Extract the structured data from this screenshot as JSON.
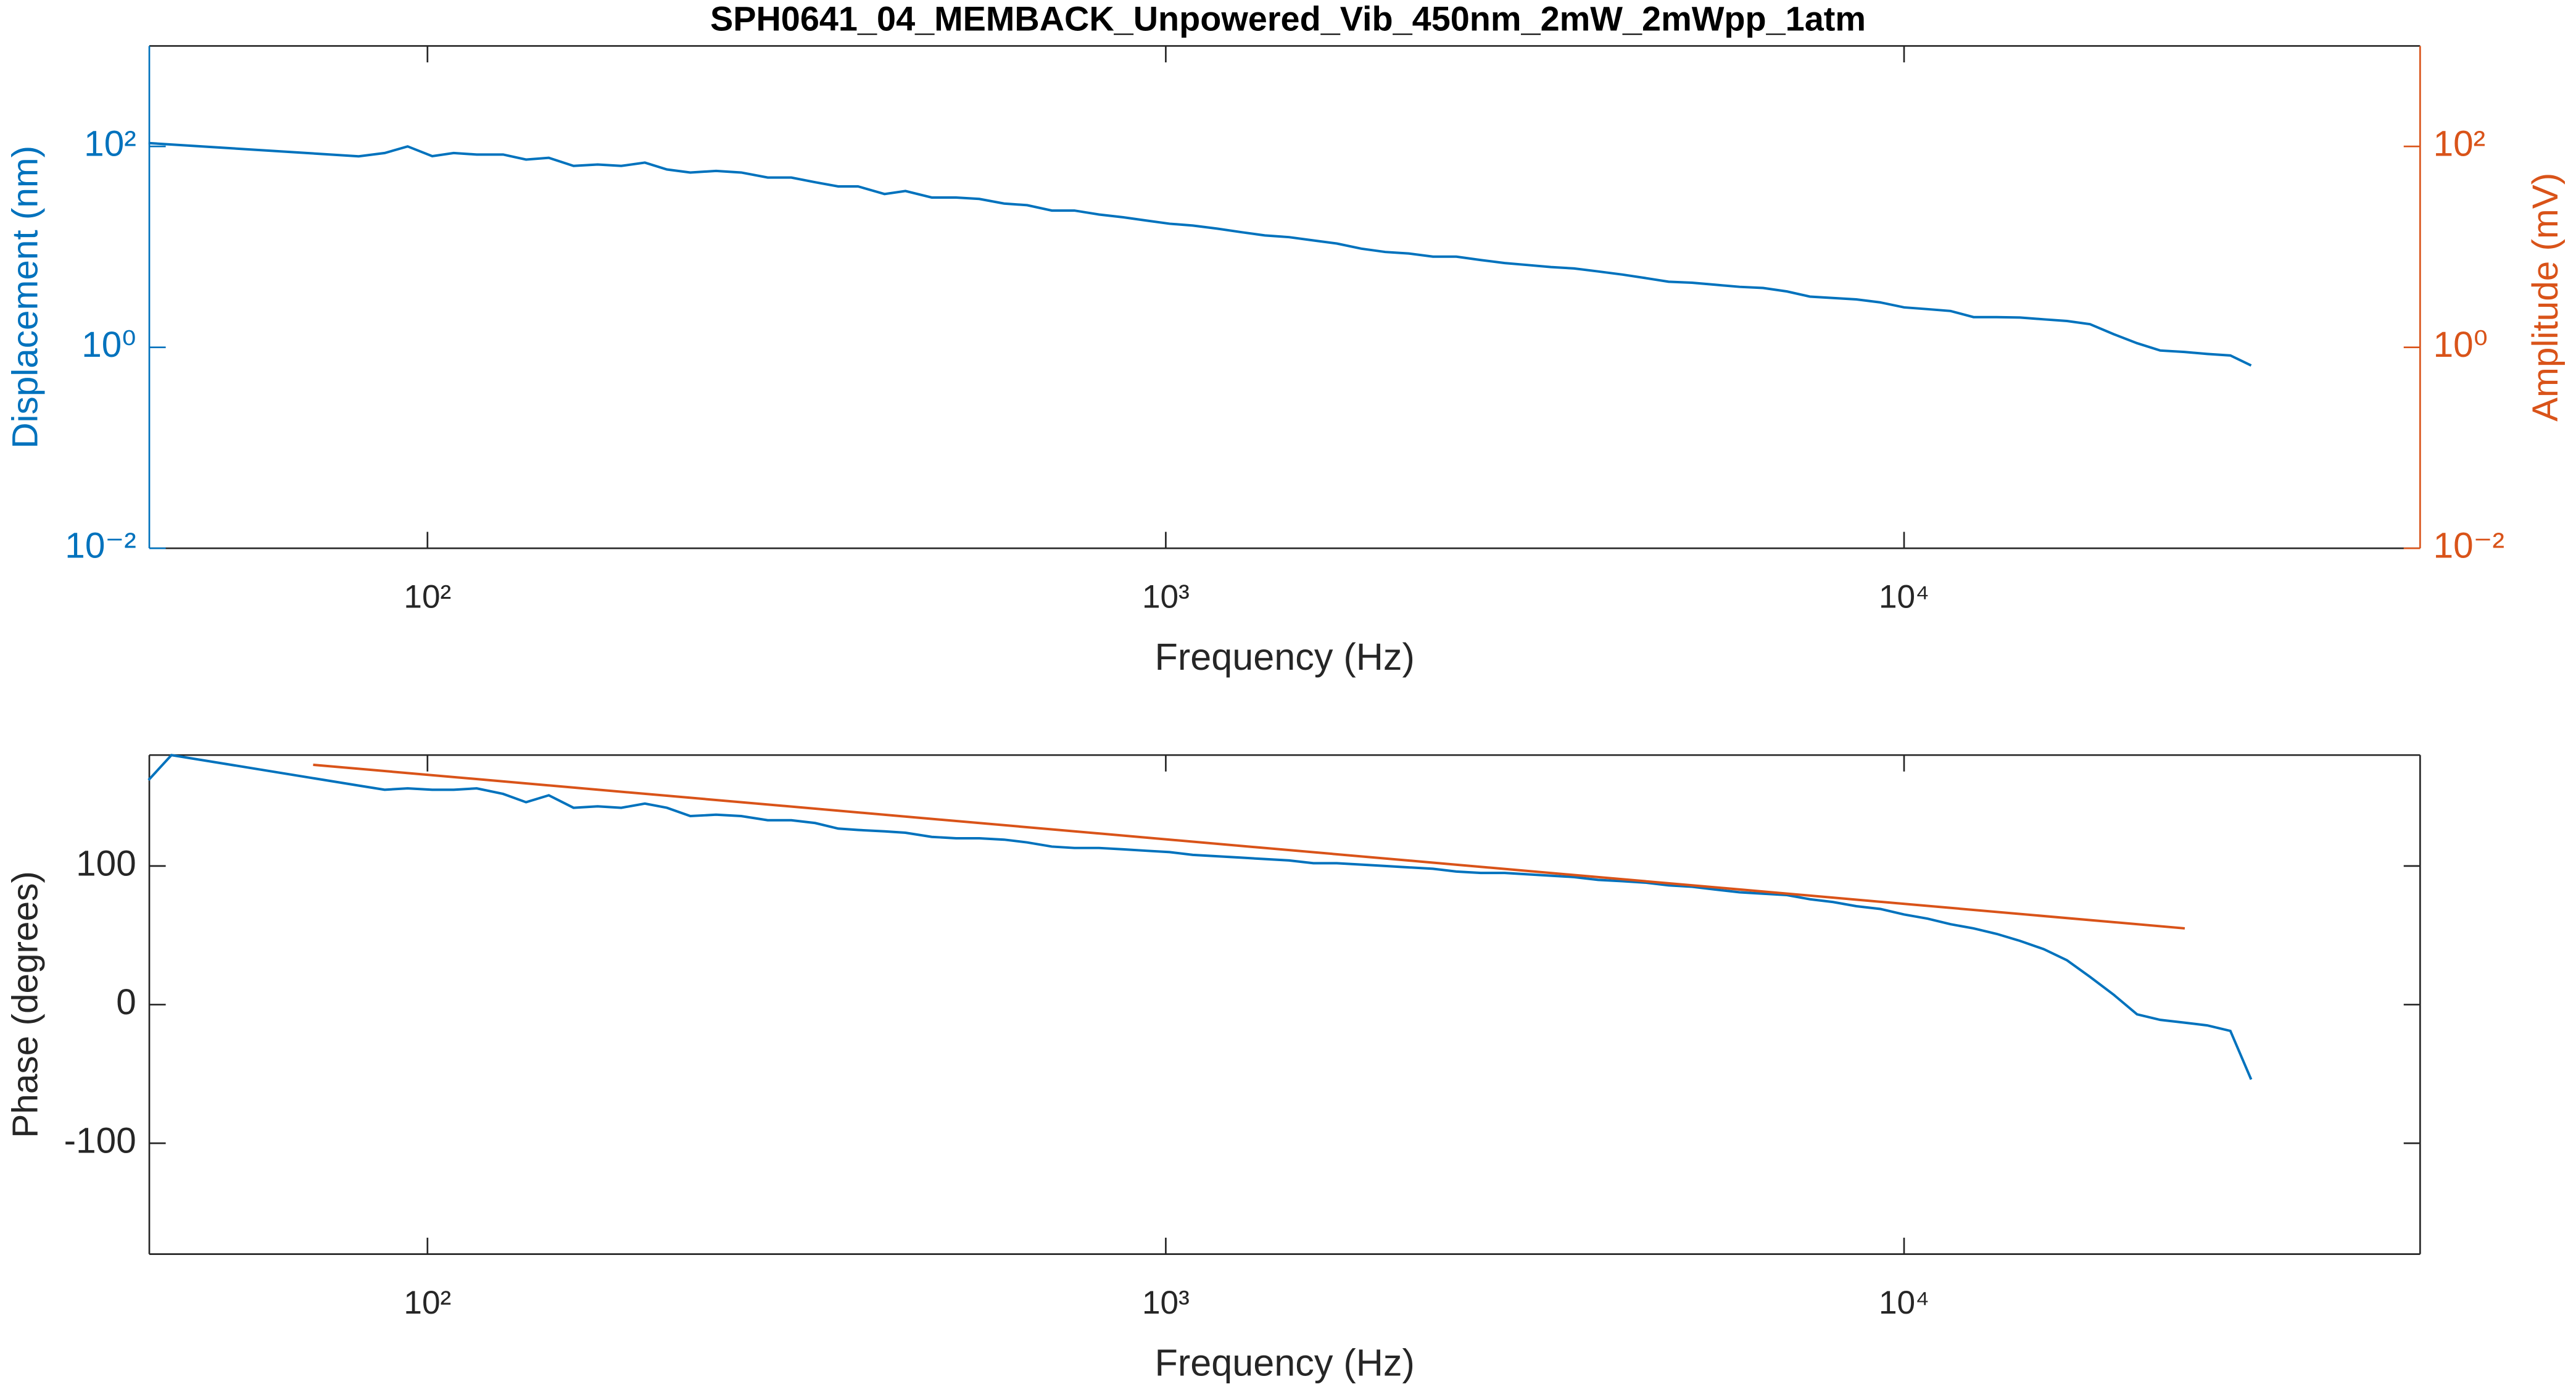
{
  "chart_data": [
    {
      "type": "line",
      "title": "SPH0641_04_MEMBACK_Unpowered_Vib_450nm_2mW_2mWpp_1atm",
      "xlabel": "Frequency (Hz)",
      "ylabel": "Displacement (nm)",
      "y2label": "Amplitude (mV)",
      "xscale": "log",
      "yscale": "log",
      "xlim": [
        42,
        50000
      ],
      "ylim": [
        0.01,
        1000
      ],
      "y2lim": [
        0.01,
        1000
      ],
      "xticks": [
        {
          "value": 100,
          "label": "10²"
        },
        {
          "value": 1000,
          "label": "10³"
        },
        {
          "value": 10000,
          "label": "10⁴"
        }
      ],
      "yticks": [
        {
          "value": 0.01,
          "label": "10⁻²"
        },
        {
          "value": 1,
          "label": "10⁰"
        },
        {
          "value": 100,
          "label": "10²"
        }
      ],
      "y2ticks": [
        {
          "value": 0.01,
          "label": "10⁻²"
        },
        {
          "value": 1,
          "label": "10⁰"
        },
        {
          "value": 100,
          "label": "10²"
        }
      ],
      "color": "#0072bd",
      "y2color": "#d95319",
      "x": [
        41.9,
        80.7,
        87.5,
        94,
        101.5,
        108.5,
        116.6,
        126.6,
        136,
        146,
        157.7,
        170,
        183,
        197,
        211,
        227,
        246,
        266,
        289,
        311,
        335,
        360,
        383,
        416,
        444,
        482,
        520,
        559,
        604,
        649,
        701,
        752,
        812,
        876,
        941,
        1012,
        1088,
        1174,
        1267,
        1362,
        1469,
        1585,
        1705,
        1840,
        1983,
        2132,
        2301,
        2475,
        2671,
        2877,
        3091,
        3324,
        3573,
        3850,
        4155,
        4460,
        4798,
        5161,
        5549,
        5989,
        6442,
        6941,
        7456,
        8013,
        8617,
        9287,
        10000,
        10760,
        11560,
        12420,
        13350,
        14350,
        15460,
        16620,
        17860,
        19240,
        20680,
        22230,
        23960,
        25740,
        27670,
        29520
      ],
      "values": [
        108,
        79.7,
        86,
        100,
        80,
        86,
        83,
        83,
        74,
        77,
        64,
        66,
        64,
        69,
        59,
        55,
        57,
        55,
        49,
        49,
        44,
        40,
        40,
        33.6,
        36,
        31,
        31,
        30,
        27,
        26,
        23,
        23,
        21,
        19.7,
        18.3,
        17,
        16.3,
        15.2,
        14,
        13,
        12.5,
        11.6,
        10.8,
        9.6,
        8.9,
        8.6,
        8,
        8,
        7.4,
        6.9,
        6.6,
        6.3,
        6.1,
        5.7,
        5.3,
        4.9,
        4.5,
        4.4,
        4.2,
        4,
        3.9,
        3.6,
        3.2,
        3.1,
        3,
        2.8,
        2.5,
        2.4,
        2.3,
        2,
        2,
        1.98,
        1.9,
        1.83,
        1.7,
        1.35,
        1.1,
        0.93,
        0.9,
        0.86,
        0.83,
        0.66
      ]
    },
    {
      "type": "line",
      "xlabel": "Frequency (Hz)",
      "ylabel": "Phase (degrees)",
      "xscale": "log",
      "xlim": [
        42,
        50000
      ],
      "ylim": [
        -180,
        180
      ],
      "xticks": [
        {
          "value": 100,
          "label": "10²"
        },
        {
          "value": 1000,
          "label": "10³"
        },
        {
          "value": 10000,
          "label": "10⁴"
        }
      ],
      "yticks": [
        -100,
        0,
        100
      ],
      "series": [
        {
          "color": "#0072bd",
          "x": [
            41.9,
            45,
            80.7,
            87.5,
            94,
            101.5,
            108.5,
            116.6,
            126.6,
            136,
            146,
            157.7,
            170,
            183,
            197,
            211,
            227,
            246,
            266,
            289,
            311,
            335,
            360,
            383,
            416,
            444,
            482,
            520,
            559,
            604,
            649,
            701,
            752,
            812,
            876,
            941,
            1012,
            1088,
            1174,
            1267,
            1362,
            1469,
            1585,
            1705,
            1840,
            1983,
            2132,
            2301,
            2475,
            2671,
            2877,
            3091,
            3324,
            3573,
            3850,
            4155,
            4460,
            4798,
            5161,
            5549,
            5989,
            6442,
            6941,
            7456,
            8013,
            8617,
            9287,
            10000,
            10760,
            11560,
            12420,
            13350,
            14350,
            15460,
            16620,
            17860,
            19240,
            20680,
            22230,
            23960,
            25740,
            27670,
            29520
          ],
          "values": [
            162,
            180,
            158,
            155,
            156,
            155,
            155,
            156,
            152,
            146,
            151,
            142,
            143,
            142,
            145,
            142,
            136,
            137,
            136,
            133,
            133,
            131,
            127,
            126,
            125,
            124,
            121,
            120,
            120,
            119,
            117,
            114,
            113,
            113,
            112,
            111,
            110,
            108,
            107,
            106,
            105,
            104,
            102,
            102,
            101,
            100,
            99,
            98,
            96,
            95,
            95,
            94,
            93,
            92,
            90,
            89,
            88,
            86,
            85,
            83,
            81,
            80,
            79,
            76,
            74,
            71,
            69,
            65,
            62,
            58,
            55,
            51,
            46,
            40,
            32,
            20,
            7,
            -7,
            -11,
            -13,
            -15,
            -19,
            -54
          ]
        },
        {
          "color": "#d95319",
          "x": [
            70,
            24000
          ],
          "values": [
            173,
            55
          ]
        }
      ]
    }
  ]
}
